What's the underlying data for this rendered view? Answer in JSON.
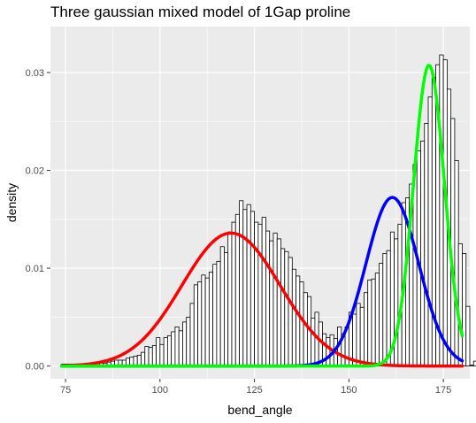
{
  "chart_data": {
    "type": "bar",
    "title": "Three gaussian mixed model of 1Gap proline",
    "xlabel": "bend_angle",
    "ylabel": "density",
    "xlim": [
      71,
      182
    ],
    "ylim": [
      -0.0013,
      0.0347
    ],
    "x_ticks": [
      75,
      100,
      125,
      150,
      175
    ],
    "y_ticks": [
      0.0,
      0.01,
      0.02,
      0.03
    ],
    "x_tick_labels": [
      "75",
      "100",
      "125",
      "150",
      "175"
    ],
    "y_tick_labels": [
      "0.00",
      "0.01",
      "0.02",
      "0.03"
    ],
    "grid": true,
    "background": "#ebebeb",
    "histogram": {
      "bin_start": 74,
      "bin_width": 1,
      "bar_color": "#ffffff",
      "edge_color": "#000000",
      "densities": [
        0.0002,
        0.0002,
        0.0002,
        0.0002,
        0.0002,
        0.0002,
        0.0002,
        0.0002,
        0.0002,
        0.0003,
        0.0003,
        0.0003,
        0.0004,
        0.0005,
        0.0006,
        0.0006,
        0.0006,
        0.0008,
        0.0009,
        0.001,
        0.0011,
        0.0014,
        0.002,
        0.0019,
        0.0021,
        0.0029,
        0.0022,
        0.0029,
        0.0031,
        0.0035,
        0.004,
        0.0036,
        0.0045,
        0.005,
        0.0064,
        0.0083,
        0.0086,
        0.0093,
        0.009,
        0.0096,
        0.0104,
        0.0107,
        0.0122,
        0.0116,
        0.0137,
        0.0147,
        0.0155,
        0.0169,
        0.016,
        0.0165,
        0.0158,
        0.0147,
        0.0145,
        0.0152,
        0.0138,
        0.0128,
        0.0136,
        0.013,
        0.012,
        0.0117,
        0.0111,
        0.0099,
        0.0092,
        0.0086,
        0.0075,
        0.0071,
        0.0049,
        0.0055,
        0.0045,
        0.0033,
        0.0029,
        0.0032,
        0.0028,
        0.004,
        0.0033,
        0.004,
        0.0055,
        0.0053,
        0.0064,
        0.006,
        0.0075,
        0.0088,
        0.0089,
        0.0095,
        0.0105,
        0.0115,
        0.0118,
        0.0137,
        0.013,
        0.0145,
        0.0167,
        0.0172,
        0.0186,
        0.0206,
        0.022,
        0.023,
        0.0248,
        0.0275,
        0.0295,
        0.0308,
        0.0318,
        0.0313,
        0.0283,
        0.0253,
        0.021,
        0.0125,
        0.0115,
        0.0061,
        0.0001,
        0.0005
      ]
    },
    "series": [
      {
        "name": "",
        "color": "#ff0000",
        "type": "gaussian",
        "mean": 118.8,
        "sd": 13.0,
        "weight": 0.4429,
        "x_range": [
          74,
          180
        ]
      },
      {
        "name": "",
        "color": "#0000ff",
        "type": "gaussian",
        "mean": 161.5,
        "sd": 7.0,
        "weight": 0.3025,
        "x_range": [
          74,
          180
        ]
      },
      {
        "name": "",
        "color": "#00ff00",
        "type": "gaussian",
        "mean": 171.2,
        "sd": 4.1,
        "weight": 0.3162,
        "x_range": [
          74,
          180
        ]
      }
    ]
  }
}
